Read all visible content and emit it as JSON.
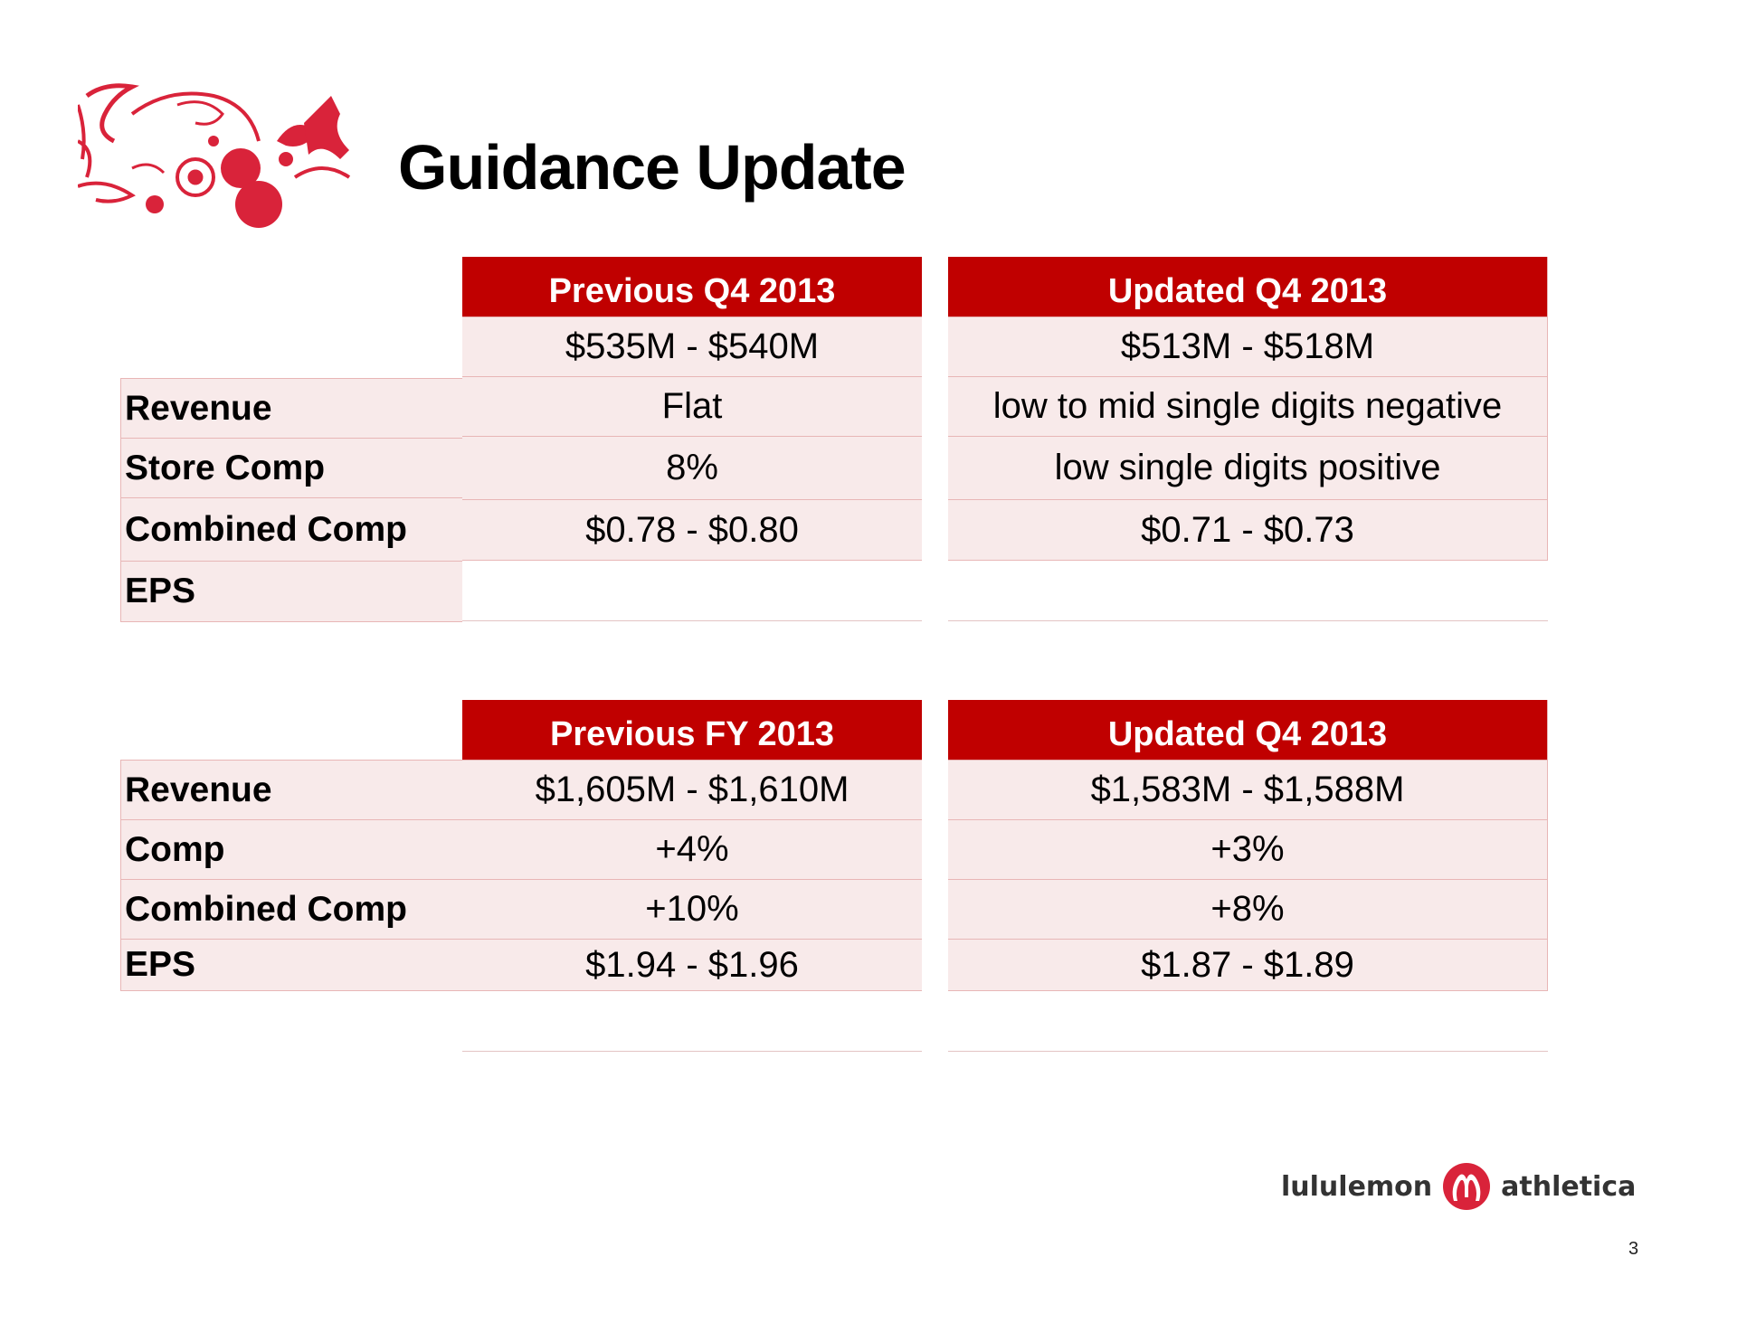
{
  "title": "Guidance Update",
  "tables": [
    {
      "headers": [
        "Previous Q4 2013",
        "Updated Q4 2013"
      ],
      "rows": [
        {
          "label": "Revenue",
          "previous": "$535M - $540M",
          "updated": "$513M - $518M"
        },
        {
          "label": "Store Comp",
          "previous": "Flat",
          "updated": "low to mid single digits negative"
        },
        {
          "label": "Combined Comp",
          "previous": "8%",
          "updated": "low single digits positive"
        },
        {
          "label": "EPS",
          "previous": "$0.78 - $0.80",
          "updated": "$0.71 - $0.73"
        }
      ]
    },
    {
      "headers": [
        "Previous FY 2013",
        "Updated Q4 2013"
      ],
      "rows": [
        {
          "label": "Revenue",
          "previous": "$1,605M - $1,610M",
          "updated": "$1,583M - $1,588M"
        },
        {
          "label": "Comp",
          "previous": "+4%",
          "updated": "+3%"
        },
        {
          "label": "Combined Comp",
          "previous": "+10%",
          "updated": "+8%"
        },
        {
          "label": "EPS",
          "previous": "$1.94 - $1.96",
          "updated": "$1.87 - $1.89"
        }
      ]
    }
  ],
  "brand": {
    "left": "lululemon",
    "right": "athletica"
  },
  "page_number": "3",
  "colors": {
    "header_bg": "#c00000",
    "cell_bg": "#f8eaea",
    "accent": "#d9233a"
  }
}
